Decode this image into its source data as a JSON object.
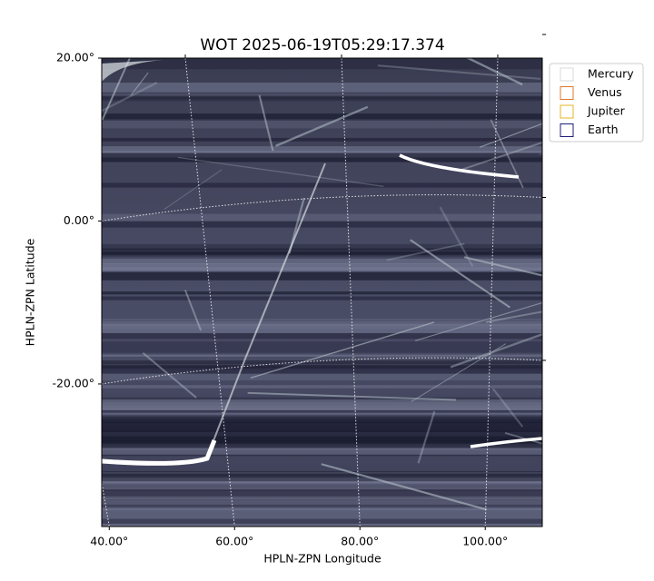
{
  "chart_data": {
    "type": "image",
    "title": "WOT 2025-06-19T05:29:17.374",
    "x_label": "HPLN-ZPN Longitude",
    "y_label": "HPLN-ZPN Latitude",
    "xlim": [
      38.8,
      109.1
    ],
    "ylim": [
      -37.5,
      20
    ],
    "xticks": [
      {
        "value": 40,
        "label": "40.00°"
      },
      {
        "value": 60,
        "label": "60.00°"
      },
      {
        "value": 80,
        "label": "80.00°"
      },
      {
        "value": 100,
        "label": "100.00°"
      }
    ],
    "yticks": [
      {
        "value": 20,
        "label": "20.00°"
      },
      {
        "value": 0,
        "label": "0.00°"
      },
      {
        "value": -20,
        "label": "-20.00°"
      }
    ],
    "grid": true,
    "legend": "upper right outside",
    "series": [
      {
        "name": "Mercury",
        "color": "#d8d8d8"
      },
      {
        "name": "Venus",
        "color": "#e0782e"
      },
      {
        "name": "Jupiter",
        "color": "#e6b426"
      },
      {
        "name": "Earth",
        "color": "#1c1c7a"
      }
    ]
  }
}
